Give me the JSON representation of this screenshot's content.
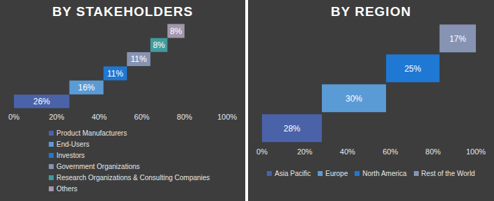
{
  "chart_data": [
    {
      "type": "waterfall",
      "title": "BY STAKEHOLDERS",
      "orientation": "horizontal",
      "categories": [
        "Product Manufacturers",
        "End-Users",
        "Investors",
        "Government Organizations",
        "Research Organizations & Consulting Companies",
        "Others"
      ],
      "values": [
        26,
        16,
        11,
        11,
        8,
        8
      ],
      "value_labels": [
        "26%",
        "16%",
        "11%",
        "11%",
        "8%",
        "8%"
      ],
      "colors": [
        "#4a62a8",
        "#5b9bd5",
        "#1f78d4",
        "#8793b3",
        "#3f9c9e",
        "#a497ac"
      ],
      "xlim": [
        0,
        100
      ],
      "xticks": [
        {
          "value": 0,
          "label": "0%"
        },
        {
          "value": 20,
          "label": "20%"
        },
        {
          "value": 40,
          "label": "40%"
        },
        {
          "value": 60,
          "label": "60%"
        },
        {
          "value": 80,
          "label": "80%"
        },
        {
          "value": 100,
          "label": "100%"
        }
      ],
      "tick_labels": "x",
      "data_labels": true,
      "legend": "bottom",
      "grid": false
    },
    {
      "type": "waterfall",
      "title": "BY REGION",
      "orientation": "horizontal",
      "categories": [
        "Asia Pacific",
        "Europe",
        "North America",
        "Rest of the World"
      ],
      "values": [
        28,
        30,
        25,
        17
      ],
      "value_labels": [
        "28%",
        "30%",
        "25%",
        "17%"
      ],
      "colors": [
        "#4a62a8",
        "#5b9bd5",
        "#1f78d4",
        "#8793b3"
      ],
      "xlim": [
        0,
        100
      ],
      "xticks": [
        {
          "value": 0,
          "label": "0%"
        },
        {
          "value": 20,
          "label": "20%"
        },
        {
          "value": 40,
          "label": "40%"
        },
        {
          "value": 60,
          "label": "60%"
        },
        {
          "value": 80,
          "label": "80%"
        },
        {
          "value": 100,
          "label": "100%"
        }
      ],
      "tick_labels": "x",
      "data_labels": true,
      "legend": "bottom",
      "grid": false
    }
  ]
}
